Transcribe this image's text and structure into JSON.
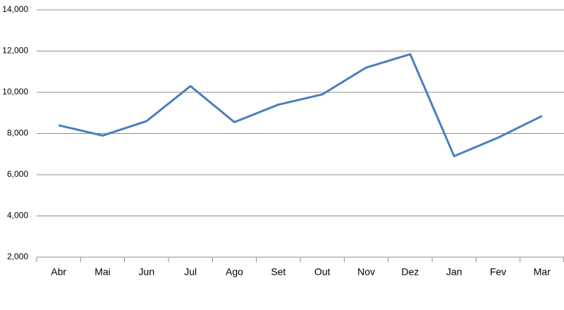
{
  "chart_data": {
    "type": "line",
    "categories": [
      "Abr",
      "Mai",
      "Jun",
      "Jul",
      "Ago",
      "Set",
      "Out",
      "Nov",
      "Dez",
      "Jan",
      "Fev",
      "Mar"
    ],
    "values": [
      8400,
      7900,
      8600,
      10300,
      8550,
      9400,
      9900,
      11200,
      11850,
      6900,
      7800,
      8850
    ],
    "color": "#4a7ebb",
    "ylim": [
      2000,
      14000
    ],
    "yticks": [
      {
        "value": 2000,
        "label": "2,000"
      },
      {
        "value": 4000,
        "label": "4,000"
      },
      {
        "value": 6000,
        "label": "6,000"
      },
      {
        "value": 8000,
        "label": "8,000"
      },
      {
        "value": 10000,
        "label": "10,000"
      },
      {
        "value": 12000,
        "label": "12,000"
      },
      {
        "value": 14000,
        "label": "14,000"
      }
    ],
    "grid": true
  }
}
